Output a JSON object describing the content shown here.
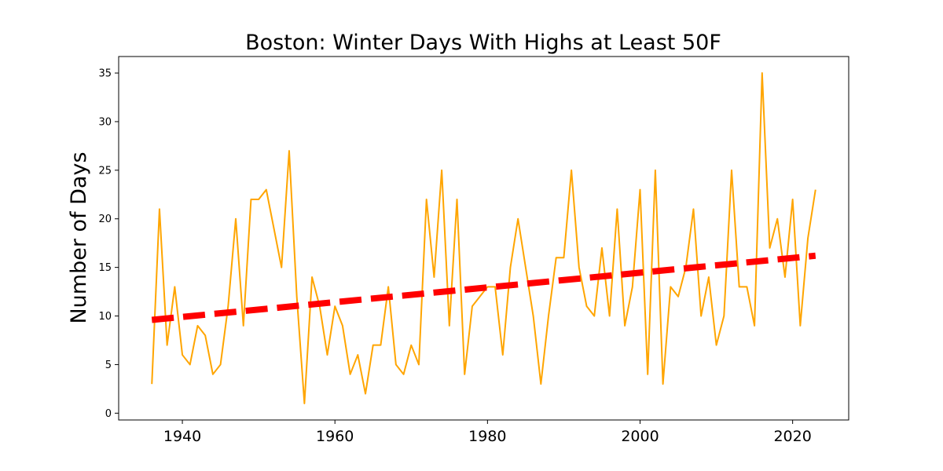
{
  "chart_data": {
    "type": "line",
    "title": "Boston: Winter Days With Highs at Least 50F",
    "xlabel": "",
    "ylabel": "Number of Days",
    "xlim": [
      1931.65,
      2027.35
    ],
    "ylim": [
      -0.7,
      36.7
    ],
    "xticks": [
      1940,
      1960,
      1980,
      2000,
      2020
    ],
    "yticks": [
      0,
      5,
      10,
      15,
      20,
      25,
      30,
      35
    ],
    "grid": false,
    "legend": "none",
    "series": [
      {
        "color": "#ffa500",
        "x": [
          1936,
          1937,
          1938,
          1939,
          1940,
          1941,
          1942,
          1943,
          1944,
          1945,
          1946,
          1947,
          1948,
          1949,
          1950,
          1951,
          1952,
          1953,
          1954,
          1955,
          1956,
          1957,
          1958,
          1959,
          1960,
          1961,
          1962,
          1963,
          1964,
          1965,
          1966,
          1967,
          1968,
          1969,
          1970,
          1971,
          1972,
          1973,
          1974,
          1975,
          1976,
          1977,
          1978,
          1979,
          1980,
          1981,
          1982,
          1983,
          1984,
          1985,
          1986,
          1987,
          1988,
          1989,
          1990,
          1991,
          1992,
          1993,
          1994,
          1995,
          1996,
          1997,
          1998,
          1999,
          2000,
          2001,
          2002,
          2003,
          2004,
          2005,
          2006,
          2007,
          2008,
          2009,
          2010,
          2011,
          2012,
          2013,
          2014,
          2015,
          2016,
          2017,
          2018,
          2019,
          2020,
          2021,
          2022,
          2023
        ],
        "y": [
          3,
          21,
          7,
          13,
          6,
          5,
          9,
          8,
          4,
          5,
          11,
          20,
          9,
          22,
          22,
          23,
          19,
          15,
          27,
          12,
          1,
          14,
          11,
          6,
          11,
          9,
          4,
          6,
          2,
          7,
          7,
          13,
          5,
          4,
          7,
          5,
          22,
          14,
          25,
          9,
          22,
          4,
          11,
          12,
          13,
          13,
          6,
          15,
          20,
          15,
          10,
          3,
          10,
          16,
          16,
          25,
          15,
          11,
          10,
          17,
          10,
          21,
          9,
          13,
          23,
          4,
          25,
          3,
          13,
          12,
          15,
          21,
          10,
          14,
          7,
          10,
          25,
          13,
          13,
          9,
          35,
          17,
          20,
          14,
          22,
          9,
          18,
          23
        ]
      },
      {
        "name": "",
        "color": "#ff0000",
        "style": "dashed",
        "x": [
          1936,
          2023
        ],
        "y": [
          9.6,
          16.2
        ]
      }
    ]
  }
}
